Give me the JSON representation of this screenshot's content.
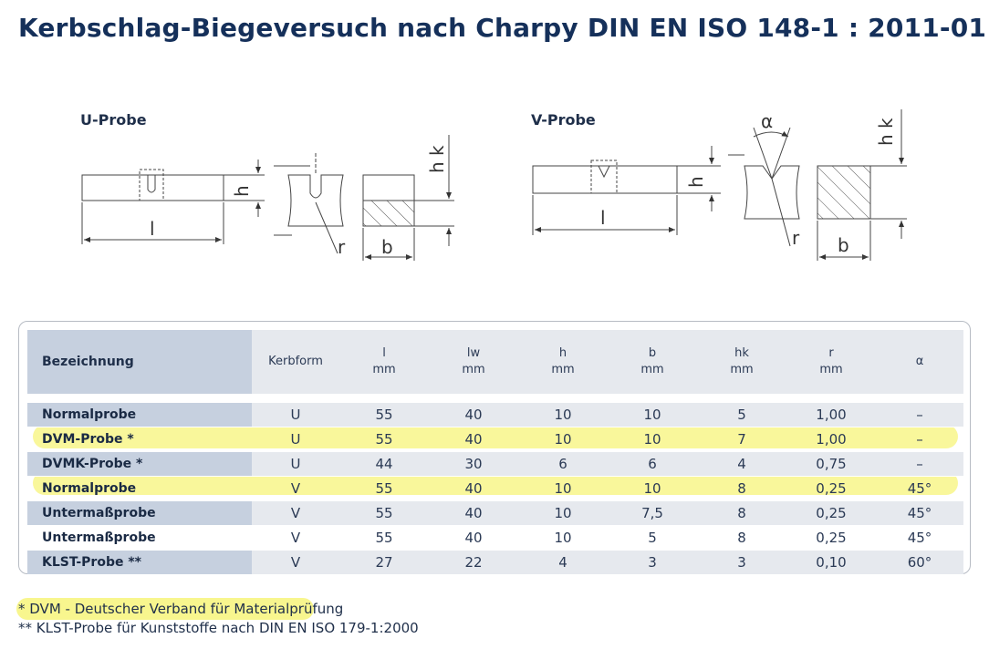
{
  "title": "Kerbschlag-Biegeversuch nach Charpy DIN EN ISO 148-1 : 2011-01",
  "u_probe": {
    "heading": "U-Probe",
    "labels": {
      "h": "h",
      "l": "l",
      "r": "r",
      "b": "b",
      "hk": "h k"
    }
  },
  "v_probe": {
    "heading": "V-Probe",
    "labels": {
      "h": "h",
      "l": "l",
      "r": "r",
      "b": "b",
      "hk": "h k",
      "alpha": "α"
    }
  },
  "table": {
    "headers": [
      {
        "name": "Bezeichnung",
        "unit": ""
      },
      {
        "name": "Kerbform",
        "unit": ""
      },
      {
        "name": "l",
        "unit": "mm"
      },
      {
        "name": "lw",
        "unit": "mm"
      },
      {
        "name": "h",
        "unit": "mm"
      },
      {
        "name": "b",
        "unit": "mm"
      },
      {
        "name": "hk",
        "unit": "mm"
      },
      {
        "name": "r",
        "unit": "mm"
      },
      {
        "name": "α",
        "unit": ""
      }
    ],
    "rows": [
      {
        "cells": [
          "Normalprobe",
          "U",
          "55",
          "40",
          "10",
          "10",
          "5",
          "1,00",
          "–"
        ],
        "highlighted": false
      },
      {
        "cells": [
          "DVM-Probe *",
          "U",
          "55",
          "40",
          "10",
          "10",
          "7",
          "1,00",
          "–"
        ],
        "highlighted": true
      },
      {
        "cells": [
          "DVMK-Probe *",
          "U",
          "44",
          "30",
          "6",
          "6",
          "4",
          "0,75",
          "–"
        ],
        "highlighted": false
      },
      {
        "cells": [
          "Normalprobe",
          "V",
          "55",
          "40",
          "10",
          "10",
          "8",
          "0,25",
          "45°"
        ],
        "highlighted": true
      },
      {
        "cells": [
          "Untermaßprobe",
          "V",
          "55",
          "40",
          "10",
          "7,5",
          "8",
          "0,25",
          "45°"
        ],
        "highlighted": false
      },
      {
        "cells": [
          "Untermaßprobe",
          "V",
          "55",
          "40",
          "10",
          "5",
          "8",
          "0,25",
          "45°"
        ],
        "highlighted": false
      },
      {
        "cells": [
          "KLST-Probe **",
          "V",
          "27",
          "22",
          "4",
          "3",
          "3",
          "0,10",
          "60°"
        ],
        "highlighted": false
      }
    ]
  },
  "footnotes": [
    "* DVM - Deutscher Verband für Materialprüfung",
    "** KLST-Probe für Kunststoffe nach DIN EN ISO 179-1:2000"
  ],
  "colors": {
    "title": "#15305a",
    "header_shade": "#c6d0df",
    "row_shade": "#e6e9ee",
    "highlight": "#f7f47a"
  }
}
